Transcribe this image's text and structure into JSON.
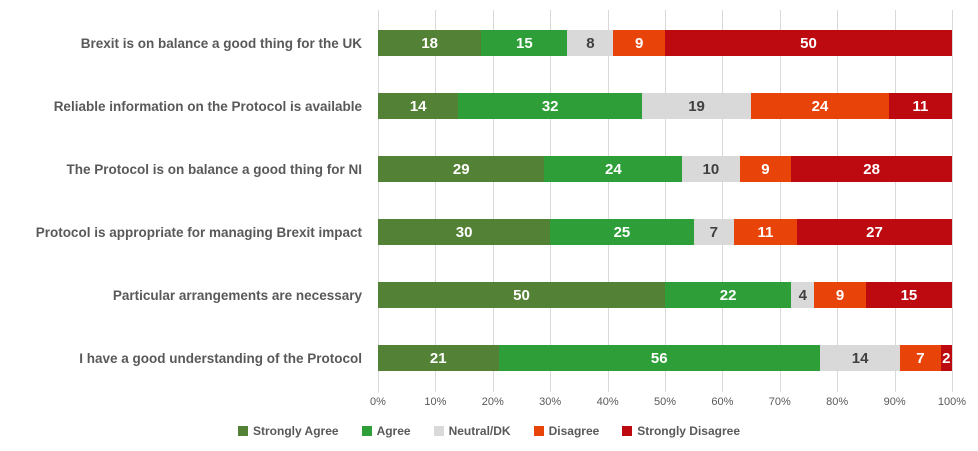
{
  "chart_data": {
    "type": "bar",
    "orientation": "horizontal",
    "stacked": true,
    "title": "",
    "xlabel": "",
    "ylabel": "",
    "axis_range": [
      0,
      100
    ],
    "grid": true,
    "legend_position": "bottom",
    "categories": [
      "Brexit is on balance a good thing for the UK",
      "Reliable information on the Protocol is available",
      "The Protocol is on balance a good thing for NI",
      "Protocol is appropriate for managing Brexit impact",
      "Particular arrangements are necessary",
      "I have a good understanding of the Protocol"
    ],
    "series": [
      {
        "name": "Strongly Agree",
        "color": "#538135",
        "label_color": "#ffffff",
        "values": [
          18,
          14,
          29,
          30,
          50,
          21
        ]
      },
      {
        "name": "Agree",
        "color": "#2E9E38",
        "label_color": "#ffffff",
        "values": [
          15,
          32,
          24,
          25,
          22,
          56
        ]
      },
      {
        "name": "Neutral/DK",
        "color": "#D9D9D9",
        "label_color": "#404040",
        "values": [
          8,
          19,
          10,
          7,
          4,
          14
        ]
      },
      {
        "name": "Disagree",
        "color": "#E8440A",
        "label_color": "#ffffff",
        "values": [
          9,
          24,
          9,
          11,
          9,
          7
        ]
      },
      {
        "name": "Strongly Disagree",
        "color": "#BD0A10",
        "label_color": "#ffffff",
        "values": [
          50,
          11,
          28,
          27,
          15,
          2
        ]
      }
    ],
    "x_axis": {
      "tick_labels": [
        "0%",
        "10%",
        "20%",
        "30%",
        "40%",
        "50%",
        "60%",
        "70%",
        "80%",
        "90%",
        "100%"
      ]
    },
    "colors": {
      "background": "#FFFFFF",
      "gridline": "#D9D9D9",
      "axis_text": "#595959",
      "category_text": "#595959",
      "legend_text": "#595959"
    }
  }
}
